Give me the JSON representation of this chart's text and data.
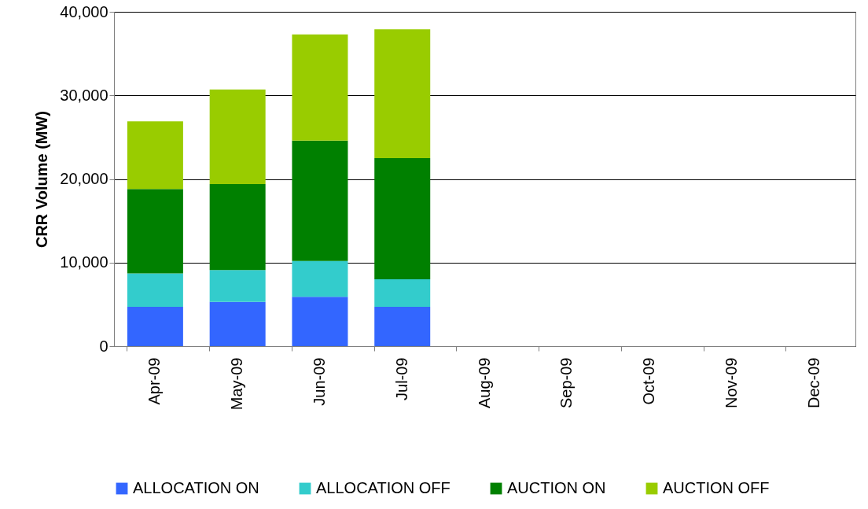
{
  "chart_data": {
    "type": "bar",
    "stacked": true,
    "ylabel": "CRR Volume (MW)",
    "categories": [
      "Apr-09",
      "May-09",
      "Jun-09",
      "Jul-09",
      "Aug-09",
      "Sep-09",
      "Oct-09",
      "Nov-09",
      "Dec-09"
    ],
    "series": [
      {
        "name": "ALLOCATION ON",
        "color": "#3366ff",
        "values": [
          4700,
          5300,
          5900,
          4700,
          null,
          null,
          null,
          null,
          null
        ]
      },
      {
        "name": "ALLOCATION OFF",
        "color": "#33cccc",
        "values": [
          4000,
          3800,
          4300,
          3300,
          null,
          null,
          null,
          null,
          null
        ]
      },
      {
        "name": "AUCTION ON",
        "color": "#008000",
        "values": [
          10100,
          10300,
          14400,
          14500,
          null,
          null,
          null,
          null,
          null
        ]
      },
      {
        "name": "AUCTION OFF",
        "color": "#99cc00",
        "values": [
          8100,
          11300,
          12700,
          15400,
          null,
          null,
          null,
          null,
          null
        ]
      }
    ],
    "ylim": [
      0,
      40000
    ],
    "yticks": [
      {
        "value": 0,
        "label": "0"
      },
      {
        "value": 10000,
        "label": "10,000"
      },
      {
        "value": 20000,
        "label": "20,000"
      },
      {
        "value": 30000,
        "label": "30,000"
      },
      {
        "value": 40000,
        "label": "40,000"
      }
    ],
    "grid": "y",
    "legend": "bottom"
  }
}
